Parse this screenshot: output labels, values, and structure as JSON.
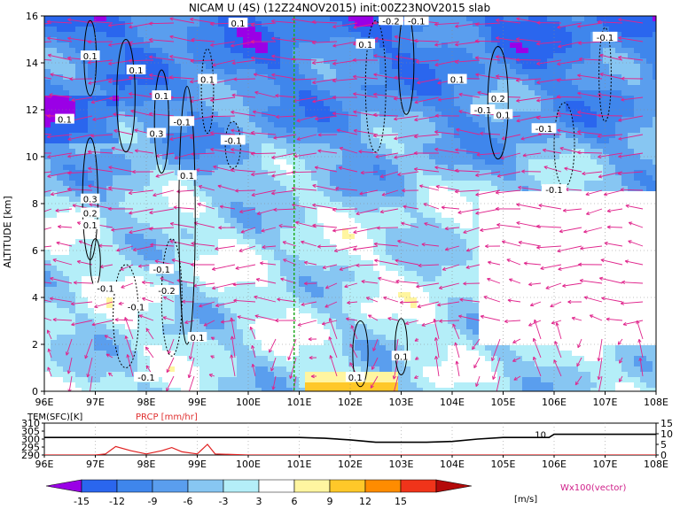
{
  "title": "NICAM U (4S) (12Z24NOV2015) init:00Z23NOV2015 slab",
  "chart_data": [
    {
      "type": "heatmap",
      "title": "NICAM U (4S) (12Z24NOV2015) init:00Z23NOV2015 slab",
      "xlabel": "",
      "ylabel": "ALTITUDE [km]",
      "x_ticks": [
        "96E",
        "97E",
        "98E",
        "99E",
        "100E",
        "101E",
        "102E",
        "103E",
        "104E",
        "105E",
        "106E",
        "107E",
        "108E"
      ],
      "y_ticks": [
        "0",
        "2",
        "4",
        "6",
        "8",
        "10",
        "12",
        "14",
        "16"
      ],
      "xlim": [
        96,
        108
      ],
      "ylim": [
        0,
        16
      ],
      "grid": true,
      "marker_line_lon": 100.9,
      "contour_labels": [
        {
          "text": "0.1",
          "lon": 96.9,
          "alt": 14.3
        },
        {
          "text": "0.1",
          "lon": 97.8,
          "alt": 13.7
        },
        {
          "text": "0.1",
          "lon": 98.3,
          "alt": 12.6
        },
        {
          "text": "0.1",
          "lon": 99.2,
          "alt": 13.3
        },
        {
          "text": "0.1",
          "lon": 96.4,
          "alt": 11.6
        },
        {
          "text": "0.3",
          "lon": 98.2,
          "alt": 11.0
        },
        {
          "text": "-0.1",
          "lon": 98.7,
          "alt": 11.5
        },
        {
          "text": "-0.1",
          "lon": 99.7,
          "alt": 10.7
        },
        {
          "text": "0.1",
          "lon": 98.8,
          "alt": 9.2
        },
        {
          "text": "0.3",
          "lon": 96.9,
          "alt": 8.2
        },
        {
          "text": "0.2",
          "lon": 96.9,
          "alt": 7.6
        },
        {
          "text": "0.1",
          "lon": 96.9,
          "alt": 7.1
        },
        {
          "text": "-0.1",
          "lon": 98.3,
          "alt": 5.2
        },
        {
          "text": "-0.2",
          "lon": 98.4,
          "alt": 4.3
        },
        {
          "text": "-0.1",
          "lon": 97.2,
          "alt": 4.4
        },
        {
          "text": "-0.1",
          "lon": 97.8,
          "alt": 3.6
        },
        {
          "text": "0.1",
          "lon": 99.0,
          "alt": 2.3
        },
        {
          "text": "-0.1",
          "lon": 98.0,
          "alt": 0.6
        },
        {
          "text": "0.1",
          "lon": 102.1,
          "alt": 0.6
        },
        {
          "text": "0.1",
          "lon": 103.0,
          "alt": 1.5
        },
        {
          "text": "0.1",
          "lon": 102.3,
          "alt": 14.8
        },
        {
          "text": "-0.2",
          "lon": 102.8,
          "alt": 15.8
        },
        {
          "text": "-0.1",
          "lon": 103.3,
          "alt": 15.8
        },
        {
          "text": "0.1",
          "lon": 99.8,
          "alt": 15.7
        },
        {
          "text": "-0.1",
          "lon": 107.0,
          "alt": 15.1
        },
        {
          "text": "0.1",
          "lon": 104.1,
          "alt": 13.3
        },
        {
          "text": "0.2",
          "lon": 104.9,
          "alt": 12.5
        },
        {
          "text": "-0.1",
          "lon": 104.6,
          "alt": 12.0
        },
        {
          "text": "0.1",
          "lon": 105.0,
          "alt": 11.8
        },
        {
          "text": "-0.1",
          "lon": 105.8,
          "alt": 11.2
        },
        {
          "text": "-0.1",
          "lon": 106.0,
          "alt": 8.6
        }
      ]
    },
    {
      "type": "line",
      "x_ticks": [
        "96E",
        "97E",
        "98E",
        "99E",
        "100E",
        "101E",
        "102E",
        "103E",
        "104E",
        "105E",
        "106E",
        "107E",
        "108E"
      ],
      "xlim": [
        96,
        108
      ],
      "series": [
        {
          "name": "TEM(SFC)[K]",
          "color": "#000000",
          "axis": "left",
          "ylim": [
            290,
            310
          ],
          "y_ticks": [
            "290",
            "295",
            "300",
            "305",
            "310"
          ],
          "x": [
            96,
            96.5,
            97,
            97.5,
            98,
            98.5,
            99,
            99.5,
            100,
            100.5,
            101,
            101.5,
            102,
            102.5,
            103,
            103.5,
            104,
            104.5,
            105,
            105.5,
            105.9,
            106,
            106.5,
            107,
            107.5,
            108
          ],
          "values": [
            301,
            301,
            301,
            301,
            301,
            301,
            301,
            301,
            301,
            301,
            301,
            300.5,
            299.5,
            298,
            298,
            298,
            298.5,
            300,
            301,
            301,
            301,
            303,
            303,
            303,
            303,
            303
          ]
        },
        {
          "name": "PRCP [mm/hr]",
          "color": "#ff0000",
          "axis": "right",
          "ylim": [
            0,
            15
          ],
          "y_ticks": [
            "0",
            "5",
            "10",
            "15"
          ],
          "x": [
            96,
            96.5,
            97,
            97.2,
            97.4,
            97.7,
            98,
            98.3,
            98.5,
            98.7,
            99,
            99.2,
            99.35,
            99.6,
            100,
            100.5,
            101,
            101.5,
            102,
            103,
            104,
            105,
            106,
            107,
            108
          ],
          "values": [
            0,
            0,
            0,
            0.5,
            4,
            2,
            0.5,
            2,
            3.5,
            1.5,
            0.5,
            5,
            0.5,
            0.3,
            0,
            0,
            0,
            0,
            0,
            0,
            0,
            0,
            0,
            0,
            0
          ]
        }
      ],
      "annotations": [
        {
          "text": "10",
          "lon": 105.9
        }
      ]
    }
  ],
  "colorbar": {
    "labels": [
      "-15",
      "-12",
      "-9",
      "-6",
      "-3",
      "3",
      "6",
      "9",
      "12",
      "15"
    ],
    "unit": "[m/s]",
    "colors": [
      "#9a00e6",
      "#2a66ee",
      "#3f86ec",
      "#5a9eee",
      "#87c6f2",
      "#b4eef8",
      "#ffffff",
      "#fff5a0",
      "#ffc829",
      "#ff8c00",
      "#f0341a",
      "#b40a0a"
    ]
  },
  "vector_legend": "Wx100(vector)"
}
